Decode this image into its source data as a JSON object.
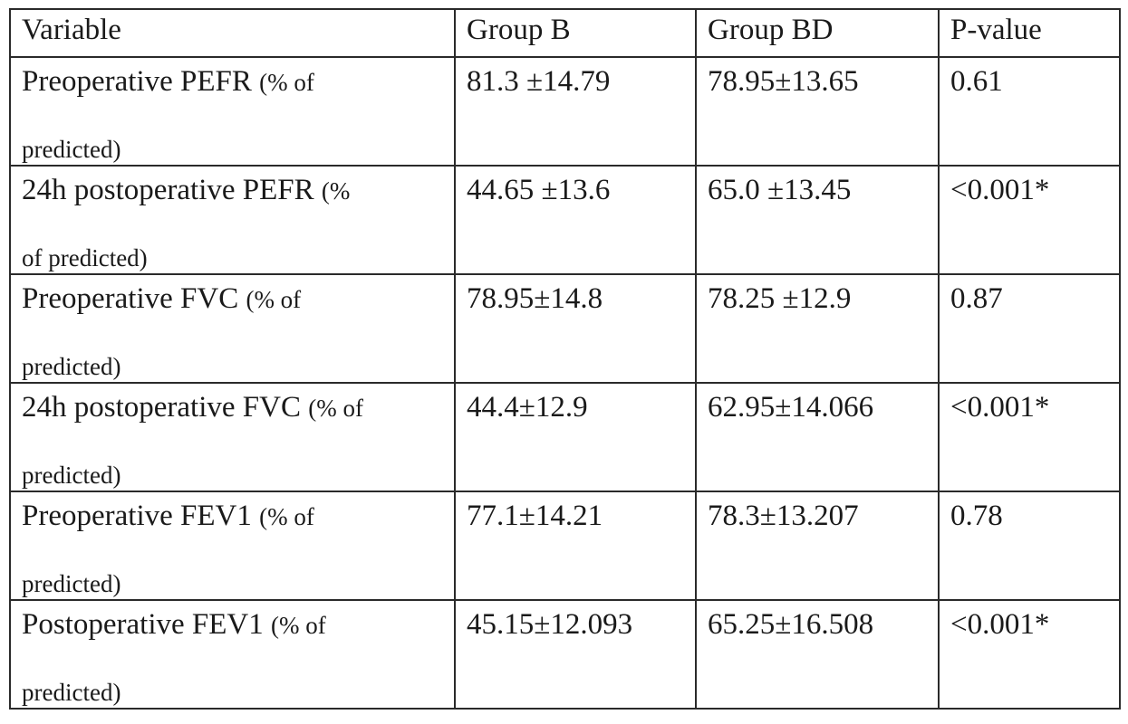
{
  "table": {
    "headers": [
      "Variable",
      "Group B",
      "Group BD",
      "P-value"
    ],
    "rows": [
      {
        "variable_main": "Preoperative PEFR",
        "variable_unit_line1": "(% of",
        "variable_unit_line2": "predicted)",
        "group_b": "81.3 ±14.79",
        "group_bd": "78.95±13.65",
        "p_value": "0.61"
      },
      {
        "variable_main": "24h postoperative PEFR",
        "variable_unit_line1": "(%",
        "variable_unit_line2": "of predicted)",
        "group_b": "44.65 ±13.6",
        "group_bd": "65.0 ±13.45",
        "p_value": "<0.001*"
      },
      {
        "variable_main": "Preoperative FVC",
        "variable_unit_line1": "(% of",
        "variable_unit_line2": "predicted)",
        "group_b": "78.95±14.8",
        "group_bd": "78.25 ±12.9",
        "p_value": "0.87"
      },
      {
        "variable_main": "24h postoperative FVC",
        "variable_unit_line1": "(% of",
        "variable_unit_line2": "predicted)",
        "group_b": "44.4±12.9",
        "group_bd": "62.95±14.066",
        "p_value": "<0.001*"
      },
      {
        "variable_main": "Preoperative FEV1",
        "variable_unit_line1": "(% of",
        "variable_unit_line2": "predicted)",
        "group_b": "77.1±14.21",
        "group_bd": "78.3±13.207",
        "p_value": "0.78"
      },
      {
        "variable_main": "Postoperative FEV1",
        "variable_unit_line1": "(% of",
        "variable_unit_line2": "predicted)",
        "group_b": "45.15±12.093",
        "group_bd": "65.25±16.508",
        "p_value": "<0.001*"
      }
    ]
  }
}
